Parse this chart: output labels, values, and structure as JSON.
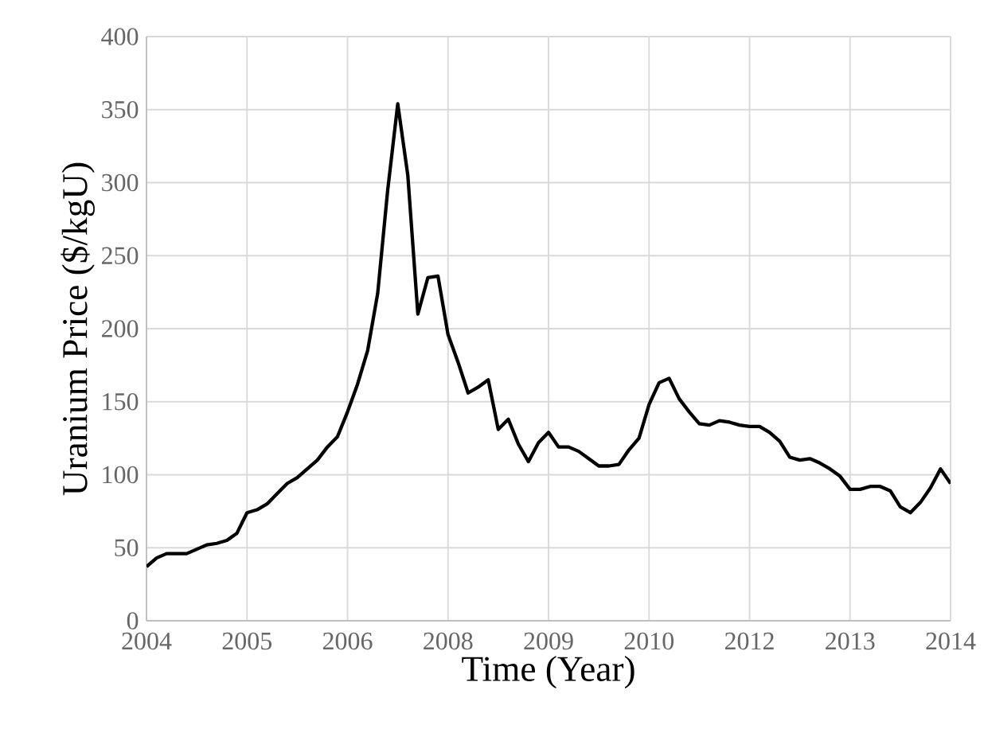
{
  "chart_data": {
    "type": "line",
    "xlabel": "Time (Year)",
    "ylabel": "Uranium Price ($/kgU)",
    "categories": [
      "2004",
      null,
      null,
      null,
      null,
      null,
      null,
      null,
      null,
      null,
      "2005",
      null,
      null,
      null,
      null,
      null,
      null,
      null,
      null,
      null,
      "2006",
      null,
      null,
      null,
      null,
      null,
      null,
      null,
      null,
      null,
      "2008",
      null,
      null,
      null,
      null,
      null,
      null,
      null,
      null,
      null,
      "2009",
      null,
      null,
      null,
      null,
      null,
      null,
      null,
      null,
      null,
      "2010",
      null,
      null,
      null,
      null,
      null,
      null,
      null,
      null,
      null,
      "2012",
      null,
      null,
      null,
      null,
      null,
      null,
      null,
      null,
      null,
      "2013",
      null,
      null,
      null,
      null,
      null,
      null,
      null,
      null,
      null,
      "2014"
    ],
    "ylim": [
      0,
      400
    ],
    "yticks": [
      0,
      50,
      100,
      150,
      200,
      250,
      300,
      350,
      400
    ],
    "grid": true,
    "line_style": "solid",
    "series": [
      {
        "color": "#000000",
        "values": [
          37,
          43,
          46,
          46,
          46,
          49,
          52,
          53,
          55,
          60,
          74,
          76,
          80,
          87,
          94,
          98,
          104,
          110,
          119,
          126,
          143,
          162,
          185,
          224,
          295,
          354,
          305,
          210,
          235,
          236,
          196,
          177,
          156,
          160,
          165,
          131,
          138,
          121,
          109,
          122,
          129,
          119,
          119,
          116,
          111,
          106,
          106,
          107,
          117,
          125,
          148,
          163,
          166,
          152,
          143,
          135,
          134,
          137,
          136,
          134,
          133,
          133,
          129,
          123,
          112,
          110,
          111,
          108,
          104,
          99,
          90,
          90,
          92,
          92,
          89,
          78,
          74,
          81,
          91,
          104,
          94
        ]
      }
    ]
  }
}
